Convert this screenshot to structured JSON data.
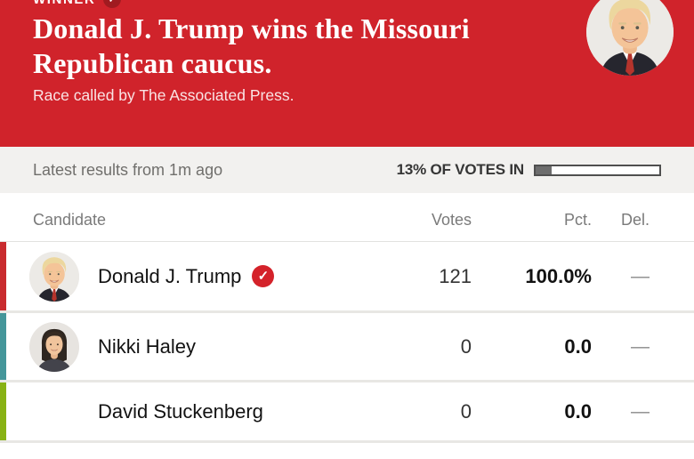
{
  "banner": {
    "winner_label": "WINNER",
    "headline": "Donald J. Trump wins the Missouri Republican caucus.",
    "subhead": "Race called by The Associated Press.",
    "background_color": "#d0232b",
    "winner_badge_color": "#a01b20"
  },
  "status_bar": {
    "latest_results": "Latest results from 1m ago",
    "votes_in_label": "13% OF VOTES IN",
    "votes_in_pct": 13,
    "progress_fill_color": "#6d6d6d"
  },
  "results_table": {
    "columns": [
      "Candidate",
      "Votes",
      "Pct.",
      "Del."
    ],
    "rows": [
      {
        "name": "Donald J. Trump",
        "winner": true,
        "votes": "121",
        "pct": "100.0%",
        "del": "—",
        "edge_color": "#c92b2e",
        "has_photo": true
      },
      {
        "name": "Nikki Haley",
        "winner": false,
        "votes": "0",
        "pct": "0.0",
        "del": "—",
        "edge_color": "#44969a",
        "has_photo": true
      },
      {
        "name": "David Stuckenberg",
        "winner": false,
        "votes": "0",
        "pct": "0.0",
        "del": "—",
        "edge_color": "#88b214",
        "has_photo": false
      }
    ],
    "winner_check_color": "#d4222a"
  },
  "icons": {
    "check": "✓"
  }
}
